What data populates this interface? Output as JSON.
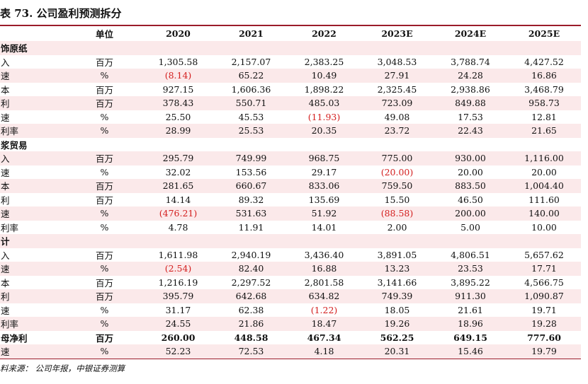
{
  "title": "表 73. 公司盈利预测拆分",
  "header": [
    "",
    "单位",
    "2020",
    "2021",
    "2022",
    "2023E",
    "2024E",
    "2025E"
  ],
  "rows": [
    {
      "type": "section",
      "label": "饰原纸"
    },
    {
      "label": "入",
      "unit": "百万",
      "values": [
        "1,305.58",
        "2,157.07",
        "2,383.25",
        "3,048.53",
        "3,788.74",
        "4,427.52"
      ]
    },
    {
      "label": "速",
      "unit": "%",
      "values": [
        "(8.14)",
        "65.22",
        "10.49",
        "27.91",
        "24.28",
        "16.86"
      ]
    },
    {
      "label": "本",
      "unit": "百万",
      "values": [
        "927.15",
        "1,606.36",
        "1,898.22",
        "2,325.45",
        "2,938.86",
        "3,468.79"
      ]
    },
    {
      "label": "利",
      "unit": "百万",
      "values": [
        "378.43",
        "550.71",
        "485.03",
        "723.09",
        "849.88",
        "958.73"
      ]
    },
    {
      "label": "速",
      "unit": "%",
      "values": [
        "25.50",
        "45.53",
        "(11.93)",
        "49.08",
        "17.53",
        "12.81"
      ]
    },
    {
      "label": "利率",
      "unit": "%",
      "values": [
        "28.99",
        "25.53",
        "20.35",
        "23.72",
        "22.43",
        "21.65"
      ]
    },
    {
      "type": "section",
      "label": "浆贸易"
    },
    {
      "label": "入",
      "unit": "百万",
      "values": [
        "295.79",
        "749.99",
        "968.75",
        "775.00",
        "930.00",
        "1,116.00"
      ]
    },
    {
      "label": "速",
      "unit": "%",
      "values": [
        "32.02",
        "153.56",
        "29.17",
        "(20.00)",
        "20.00",
        "20.00"
      ]
    },
    {
      "label": "本",
      "unit": "百万",
      "values": [
        "281.65",
        "660.67",
        "833.06",
        "759.50",
        "883.50",
        "1,004.40"
      ]
    },
    {
      "label": "利",
      "unit": "百万",
      "values": [
        "14.14",
        "89.32",
        "135.69",
        "15.50",
        "46.50",
        "111.60"
      ]
    },
    {
      "label": "速",
      "unit": "%",
      "values": [
        "(476.21)",
        "531.63",
        "51.92",
        "(88.58)",
        "200.00",
        "140.00"
      ]
    },
    {
      "label": "利率",
      "unit": "%",
      "values": [
        "4.78",
        "11.91",
        "14.01",
        "2.00",
        "5.00",
        "10.00"
      ]
    },
    {
      "type": "section",
      "label": "计"
    },
    {
      "label": "入",
      "unit": "百万",
      "values": [
        "1,611.98",
        "2,940.19",
        "3,436.40",
        "3,891.05",
        "4,806.51",
        "5,657.62"
      ]
    },
    {
      "label": "速",
      "unit": "%",
      "values": [
        "(2.54)",
        "82.40",
        "16.88",
        "13.23",
        "23.53",
        "17.71"
      ]
    },
    {
      "label": "本",
      "unit": "百万",
      "values": [
        "1,216.19",
        "2,297.52",
        "2,801.58",
        "3,141.66",
        "3,895.22",
        "4,566.75"
      ]
    },
    {
      "label": "利",
      "unit": "百万",
      "values": [
        "395.79",
        "642.68",
        "634.82",
        "749.39",
        "911.30",
        "1,090.87"
      ]
    },
    {
      "label": "速",
      "unit": "%",
      "values": [
        "31.17",
        "62.38",
        "(1.22)",
        "18.05",
        "21.61",
        "19.71"
      ]
    },
    {
      "label": "利率",
      "unit": "%",
      "values": [
        "24.55",
        "21.86",
        "18.47",
        "19.26",
        "18.96",
        "19.28"
      ]
    },
    {
      "type": "bold",
      "label": "母净利",
      "unit": "百万",
      "values": [
        "260.00",
        "448.58",
        "467.34",
        "562.25",
        "649.15",
        "777.60"
      ]
    },
    {
      "label": "速",
      "unit": "%",
      "values": [
        "52.23",
        "72.53",
        "4.18",
        "20.31",
        "15.46",
        "19.79"
      ]
    }
  ],
  "source": "料来源： 公司年报，中银证券测算"
}
